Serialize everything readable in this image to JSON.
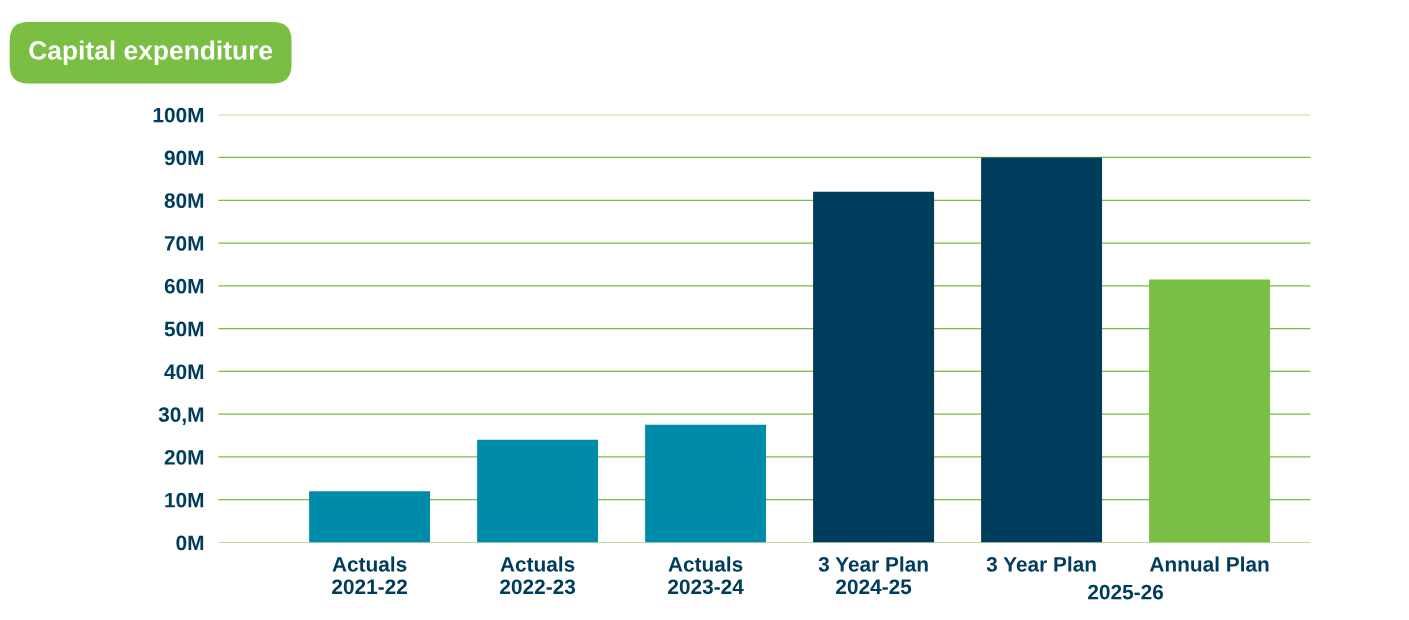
{
  "chart_data": {
    "type": "bar",
    "title": "Capital expenditure",
    "categories": [
      "Actuals\n2021-22",
      "Actuals\n2022-23",
      "Actuals\n2023-24",
      "3 Year Plan\n2024-25",
      "3 Year Plan",
      "Annual Plan"
    ],
    "values": [
      12,
      24,
      27.5,
      82,
      90,
      61.5
    ],
    "colors": [
      "#008ba8",
      "#008ba8",
      "#008ba8",
      "#003d5c",
      "#003d5c",
      "#7abf43"
    ],
    "annotations": [
      "2025-26"
    ],
    "ylim": [
      0,
      100
    ],
    "yticks": [
      {
        "value": 0,
        "label": "0M"
      },
      {
        "value": 10,
        "label": "10M"
      },
      {
        "value": 20,
        "label": "20M"
      },
      {
        "value": 30,
        "label": "30,M"
      },
      {
        "value": 40,
        "label": "40M"
      },
      {
        "value": 50,
        "label": "50M"
      },
      {
        "value": 60,
        "label": "60M"
      },
      {
        "value": 70,
        "label": "70M"
      },
      {
        "value": 80,
        "label": "80M"
      },
      {
        "value": 90,
        "label": "90M"
      },
      {
        "value": 100,
        "label": "100M"
      }
    ],
    "grid": "y"
  }
}
